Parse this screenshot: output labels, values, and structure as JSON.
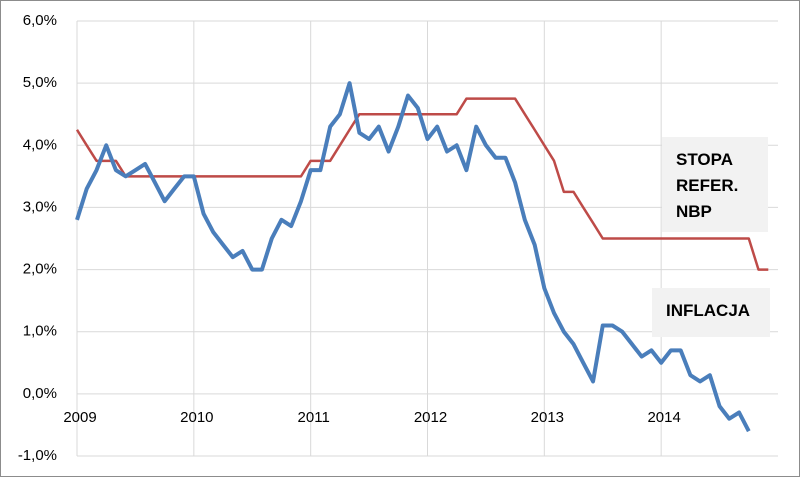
{
  "chart_data": {
    "type": "line",
    "x": [
      2009,
      2009.083,
      2009.167,
      2009.25,
      2009.333,
      2009.417,
      2009.5,
      2009.583,
      2009.667,
      2009.75,
      2009.833,
      2009.917,
      2010,
      2010.083,
      2010.167,
      2010.25,
      2010.333,
      2010.417,
      2010.5,
      2010.583,
      2010.667,
      2010.75,
      2010.833,
      2010.917,
      2011,
      2011.083,
      2011.167,
      2011.25,
      2011.333,
      2011.417,
      2011.5,
      2011.583,
      2011.667,
      2011.75,
      2011.833,
      2011.917,
      2012,
      2012.083,
      2012.167,
      2012.25,
      2012.333,
      2012.417,
      2012.5,
      2012.583,
      2012.667,
      2012.75,
      2012.833,
      2012.917,
      2013,
      2013.083,
      2013.167,
      2013.25,
      2013.333,
      2013.417,
      2013.5,
      2013.583,
      2013.667,
      2013.75,
      2013.833,
      2013.917,
      2014,
      2014.083,
      2014.167,
      2014.25,
      2014.333,
      2014.417,
      2014.5,
      2014.583,
      2014.667,
      2014.75,
      2014.833,
      2014.917
    ],
    "series": [
      {
        "name": "INFLACJA",
        "color": "#4a7ebb",
        "values": [
          2.8,
          3.3,
          3.6,
          4.0,
          3.6,
          3.5,
          3.6,
          3.7,
          3.4,
          3.1,
          3.3,
          3.5,
          3.5,
          2.9,
          2.6,
          2.4,
          2.2,
          2.3,
          2.0,
          2.0,
          2.5,
          2.8,
          2.7,
          3.1,
          3.6,
          3.6,
          4.3,
          4.5,
          5.0,
          4.2,
          4.1,
          4.3,
          3.9,
          4.3,
          4.8,
          4.6,
          4.1,
          4.3,
          3.9,
          4.0,
          3.6,
          4.3,
          4.0,
          3.8,
          3.8,
          3.4,
          2.8,
          2.4,
          1.7,
          1.3,
          1.0,
          0.8,
          0.5,
          0.2,
          1.1,
          1.1,
          1.0,
          0.8,
          0.6,
          0.7,
          0.5,
          0.7,
          0.7,
          0.3,
          0.2,
          0.3,
          -0.2,
          -0.4,
          -0.3,
          -0.6,
          null,
          null
        ]
      },
      {
        "name": "STOPA REFER. NBP",
        "color": "#be4b48",
        "values": [
          4.25,
          4.0,
          3.75,
          3.75,
          3.75,
          3.5,
          3.5,
          3.5,
          3.5,
          3.5,
          3.5,
          3.5,
          3.5,
          3.5,
          3.5,
          3.5,
          3.5,
          3.5,
          3.5,
          3.5,
          3.5,
          3.5,
          3.5,
          3.5,
          3.75,
          3.75,
          3.75,
          4.0,
          4.25,
          4.5,
          4.5,
          4.5,
          4.5,
          4.5,
          4.5,
          4.5,
          4.5,
          4.5,
          4.5,
          4.5,
          4.75,
          4.75,
          4.75,
          4.75,
          4.75,
          4.75,
          4.5,
          4.25,
          4.0,
          3.75,
          3.25,
          3.25,
          3.0,
          2.75,
          2.5,
          2.5,
          2.5,
          2.5,
          2.5,
          2.5,
          2.5,
          2.5,
          2.5,
          2.5,
          2.5,
          2.5,
          2.5,
          2.5,
          2.5,
          2.5,
          2.0,
          2.0
        ]
      }
    ],
    "xlim": [
      2009,
      2015
    ],
    "xticks": [
      2009,
      2010,
      2011,
      2012,
      2013,
      2014
    ],
    "ylim": [
      -1,
      6
    ],
    "yticks": [
      {
        "value": -1,
        "label": "-1,0%"
      },
      {
        "value": 0,
        "label": "0,0%"
      },
      {
        "value": 1,
        "label": "1,0%"
      },
      {
        "value": 2,
        "label": "2,0%"
      },
      {
        "value": 3,
        "label": "3,0%"
      },
      {
        "value": 4,
        "label": "4,0%"
      },
      {
        "value": 5,
        "label": "5,0%"
      },
      {
        "value": 6,
        "label": "6,0%"
      }
    ],
    "grid": true
  }
}
